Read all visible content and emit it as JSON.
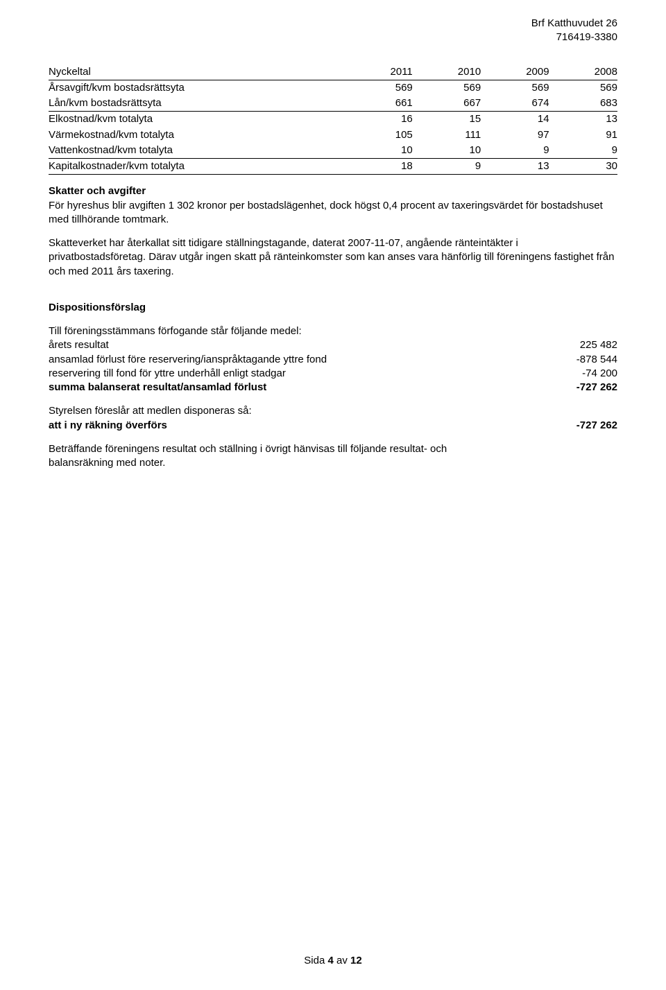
{
  "header": {
    "org_name": "Brf Katthuvudet 26",
    "org_number": "716419-3380"
  },
  "nyckel": {
    "header": [
      "Nyckeltal",
      "2011",
      "2010",
      "2009",
      "2008"
    ],
    "rows": [
      {
        "cells": [
          "Årsavgift/kvm bostadsrättsyta",
          "569",
          "569",
          "569",
          "569"
        ],
        "rule": false
      },
      {
        "cells": [
          "Lån/kvm bostadsrättsyta",
          "661",
          "667",
          "674",
          "683"
        ],
        "rule": true
      },
      {
        "cells": [
          "Elkostnad/kvm totalyta",
          "16",
          "15",
          "14",
          "13"
        ],
        "rule": false
      },
      {
        "cells": [
          "Värmekostnad/kvm totalyta",
          "105",
          "111",
          "97",
          "91"
        ],
        "rule": false
      },
      {
        "cells": [
          "Vattenkostnad/kvm totalyta",
          "10",
          "10",
          "9",
          "9"
        ],
        "rule": true
      },
      {
        "cells": [
          "Kapitalkostnader/kvm totalyta",
          "18",
          "9",
          "13",
          "30"
        ],
        "rule": true
      }
    ]
  },
  "skatter": {
    "heading": "Skatter och avgifter",
    "p1": "För hyreshus blir avgiften 1 302 kronor per bostadslägenhet, dock högst 0,4 procent av taxeringsvärdet för bostadshuset med tillhörande tomtmark.",
    "p2": "Skatteverket har återkallat sitt tidigare ställningstagande, daterat 2007-11-07, angående ränteintäkter i privatbostadsföretag. Därav utgår ingen skatt på ränteinkomster som kan anses vara hänförlig till föreningens fastighet från och med 2011 års taxering."
  },
  "disposition": {
    "heading": "Dispositionsförslag",
    "intro": "Till föreningsstämmans förfogande står följande medel:",
    "rows": [
      {
        "label": "årets resultat",
        "value": "225 482",
        "bold": false
      },
      {
        "label": "ansamlad förlust före reservering/ianspråktagande yttre fond",
        "value": "-878 544",
        "bold": false
      },
      {
        "label": "reservering till fond för yttre underhåll enligt stadgar",
        "value": "-74 200",
        "bold": false
      },
      {
        "label": "summa balanserat resultat/ansamlad förlust",
        "value": "-727 262",
        "bold": true
      }
    ],
    "intro2": "Styrelsen föreslår att medlen disponeras så:",
    "rows2": [
      {
        "label": "att i ny räkning överförs",
        "value": "-727 262",
        "bold": true
      }
    ],
    "closing": "Beträffande föreningens resultat och ställning i övrigt hänvisas till följande resultat- och balansräkning med noter."
  },
  "footer": {
    "page_label_prefix": "Sida ",
    "page_num": "4",
    "page_label_mid": " av ",
    "page_total": "12"
  }
}
